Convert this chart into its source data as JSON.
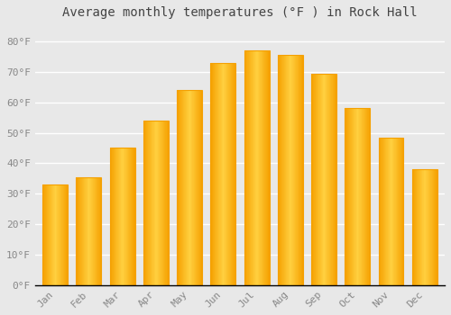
{
  "title": "Average monthly temperatures (°F ) in Rock Hall",
  "months": [
    "Jan",
    "Feb",
    "Mar",
    "Apr",
    "May",
    "Jun",
    "Jul",
    "Aug",
    "Sep",
    "Oct",
    "Nov",
    "Dec"
  ],
  "values": [
    33,
    35.5,
    45,
    54,
    64,
    73,
    77,
    75.5,
    69.5,
    58,
    48.5,
    38
  ],
  "bar_color_center": "#FFD040",
  "bar_color_edge": "#F5A000",
  "background_color": "#E8E8E8",
  "grid_color": "#FFFFFF",
  "text_color": "#888888",
  "axis_color": "#000000",
  "ylim": [
    0,
    85
  ],
  "yticks": [
    0,
    10,
    20,
    30,
    40,
    50,
    60,
    70,
    80
  ],
  "ytick_labels": [
    "0°F",
    "10°F",
    "20°F",
    "30°F",
    "40°F",
    "50°F",
    "60°F",
    "70°F",
    "80°F"
  ],
  "title_fontsize": 10,
  "tick_fontsize": 8,
  "bar_width": 0.75
}
